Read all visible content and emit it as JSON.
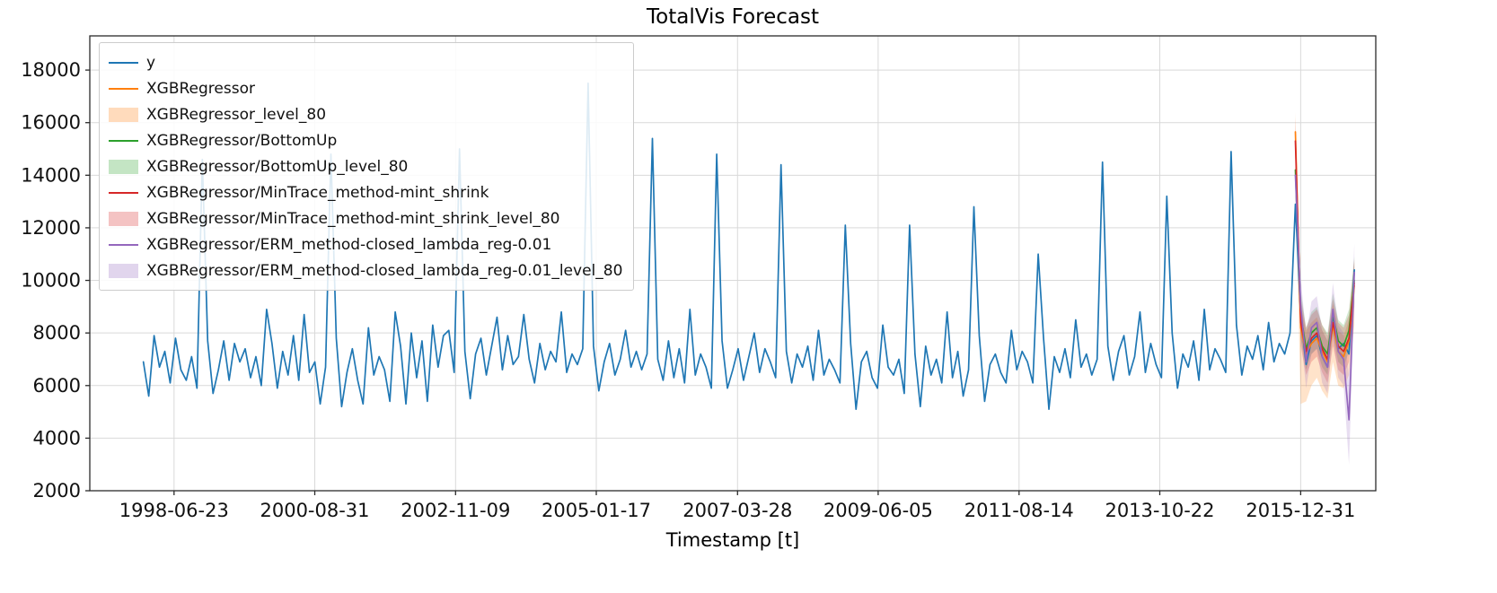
{
  "chart_data": {
    "type": "line",
    "title": "TotalVis Forecast",
    "xlabel": "Timestamp [t]",
    "ylabel": "",
    "grid": true,
    "legend_position": "upper left",
    "x_unit": "monthly, month index 0 = 1998-01",
    "xlim_months": [
      -10,
      230
    ],
    "ylim": [
      2000,
      19300
    ],
    "y_ticks": [
      2000,
      4000,
      6000,
      8000,
      10000,
      12000,
      14000,
      16000,
      18000
    ],
    "x_tick_labels": [
      "1998-06-23",
      "2000-08-31",
      "2002-11-09",
      "2005-01-17",
      "2007-03-28",
      "2009-06-05",
      "2011-08-14",
      "2013-10-22",
      "2015-12-31"
    ],
    "series": [
      {
        "name": "y",
        "color": "#1f77b4",
        "start_index": 0,
        "values": [
          6900,
          5600,
          7900,
          6700,
          7300,
          6100,
          7800,
          6600,
          6200,
          7100,
          5900,
          14600,
          7700,
          5700,
          6600,
          7700,
          6200,
          7600,
          6900,
          7400,
          6300,
          7100,
          6000,
          8900,
          7600,
          5900,
          7300,
          6400,
          7900,
          6200,
          8700,
          6500,
          6900,
          5300,
          6700,
          14800,
          7800,
          5200,
          6500,
          7400,
          6200,
          5300,
          8200,
          6400,
          7100,
          6600,
          5400,
          8800,
          7500,
          5300,
          8000,
          6300,
          7700,
          5400,
          8300,
          6700,
          7900,
          8100,
          6500,
          15000,
          7300,
          5500,
          7200,
          7800,
          6400,
          7500,
          8600,
          6600,
          7900,
          6800,
          7100,
          8700,
          7000,
          6100,
          7600,
          6600,
          7300,
          6900,
          8800,
          6500,
          7200,
          6800,
          7400,
          17500,
          7500,
          5800,
          6900,
          7600,
          6400,
          7000,
          8100,
          6700,
          7300,
          6600,
          7200,
          15400,
          7000,
          6200,
          7700,
          6300,
          7400,
          6100,
          8900,
          6400,
          7200,
          6700,
          5900,
          14800,
          7700,
          5900,
          6600,
          7400,
          6200,
          7100,
          8000,
          6500,
          7400,
          6900,
          6300,
          14400,
          7300,
          6100,
          7200,
          6700,
          7500,
          6200,
          8100,
          6400,
          7000,
          6600,
          6100,
          12100,
          7600,
          5100,
          6900,
          7300,
          6300,
          5900,
          8300,
          6700,
          6400,
          7000,
          5700,
          12100,
          7200,
          5200,
          7500,
          6400,
          7000,
          6100,
          8800,
          6300,
          7300,
          5600,
          6600,
          12800,
          7900,
          5400,
          6800,
          7200,
          6500,
          6100,
          8100,
          6600,
          7300,
          6900,
          6100,
          11000,
          7800,
          5100,
          7100,
          6500,
          7400,
          6300,
          8500,
          6700,
          7200,
          6400,
          7000,
          14500,
          7500,
          6200,
          7300,
          7900,
          6400,
          7100,
          8800,
          6500,
          7600,
          6800,
          6300,
          13200,
          8000,
          5900,
          7200,
          6700,
          7700,
          6200,
          8900,
          6600,
          7400,
          7000,
          6500,
          14900,
          8300,
          6400,
          7500,
          7000,
          7900,
          6600,
          8400,
          6900,
          7600,
          7200,
          8000,
          12900,
          8600,
          6800,
          7700,
          7900,
          7100,
          6700,
          8700,
          7400,
          7600,
          7200,
          10400
        ]
      },
      {
        "name": "XGBRegressor",
        "color": "#ff7f0e",
        "start_index": 215,
        "values": [
          15650,
          8200,
          7200,
          7600,
          7800,
          7300,
          6900,
          8300,
          7300,
          7100,
          7700,
          9800
        ]
      },
      {
        "name": "XGBRegressor/BottomUp",
        "color": "#2ca02c",
        "start_index": 215,
        "values": [
          14200,
          8700,
          7400,
          8000,
          8200,
          7500,
          7200,
          8700,
          7700,
          7500,
          8100,
          10000
        ]
      },
      {
        "name": "XGBRegressor/MinTrace_method-mint_shrink",
        "color": "#d62728",
        "start_index": 215,
        "values": [
          15300,
          8400,
          7300,
          7800,
          8000,
          7400,
          7000,
          8400,
          7500,
          7300,
          7800,
          9900
        ]
      },
      {
        "name": "XGBRegressor/ERM_method-closed_lambda_reg-0.01",
        "color": "#9467bd",
        "start_index": 215,
        "values": [
          14000,
          9000,
          6900,
          8200,
          8400,
          7100,
          6700,
          8900,
          7300,
          7000,
          4700,
          10300
        ]
      }
    ],
    "bands": [
      {
        "name": "XGBRegressor_level_80",
        "color": "#ff7f0e",
        "alpha": 0.22,
        "start_index": 215,
        "lo": [
          13800,
          5300,
          5400,
          6000,
          6300,
          5800,
          5500,
          6900,
          6000,
          5900,
          6400,
          8300
        ],
        "hi": [
          16400,
          9000,
          8100,
          8400,
          8600,
          8100,
          7700,
          9100,
          8100,
          7900,
          8500,
          10700
        ]
      },
      {
        "name": "XGBRegressor/BottomUp_level_80",
        "color": "#2ca02c",
        "alpha": 0.22,
        "start_index": 215,
        "lo": [
          13400,
          7800,
          6600,
          7200,
          7400,
          6700,
          6400,
          7900,
          6900,
          6700,
          7300,
          9100
        ],
        "hi": [
          15000,
          9600,
          8200,
          8800,
          9000,
          8300,
          8000,
          9500,
          8500,
          8300,
          8900,
          10900
        ]
      },
      {
        "name": "XGBRegressor/MinTrace_method-mint_shrink_level_80",
        "color": "#d62728",
        "alpha": 0.22,
        "start_index": 215,
        "lo": [
          14400,
          7500,
          6400,
          6900,
          7100,
          6500,
          6100,
          7500,
          6600,
          6400,
          6900,
          9000
        ],
        "hi": [
          16200,
          9300,
          8200,
          8700,
          8900,
          8300,
          7900,
          9300,
          8400,
          8200,
          8700,
          10800
        ]
      },
      {
        "name": "XGBRegressor/ERM_method-closed_lambda_reg-0.01_level_80",
        "color": "#9467bd",
        "alpha": 0.22,
        "start_index": 215,
        "lo": [
          13100,
          7900,
          5900,
          7200,
          7400,
          6100,
          5700,
          7900,
          6300,
          6000,
          3000,
          9200
        ],
        "hi": [
          14900,
          10100,
          7900,
          9200,
          9400,
          8100,
          7700,
          9900,
          8300,
          8000,
          6400,
          11400
        ]
      }
    ],
    "legend": [
      {
        "label": "y",
        "type": "line",
        "color": "#1f77b4"
      },
      {
        "label": "XGBRegressor",
        "type": "line",
        "color": "#ff7f0e"
      },
      {
        "label": "XGBRegressor_level_80",
        "type": "patch",
        "color": "#ff7f0e"
      },
      {
        "label": "XGBRegressor/BottomUp",
        "type": "line",
        "color": "#2ca02c"
      },
      {
        "label": "XGBRegressor/BottomUp_level_80",
        "type": "patch",
        "color": "#2ca02c"
      },
      {
        "label": "XGBRegressor/MinTrace_method-mint_shrink",
        "type": "line",
        "color": "#d62728"
      },
      {
        "label": "XGBRegressor/MinTrace_method-mint_shrink_level_80",
        "type": "patch",
        "color": "#d62728"
      },
      {
        "label": "XGBRegressor/ERM_method-closed_lambda_reg-0.01",
        "type": "line",
        "color": "#9467bd"
      },
      {
        "label": "XGBRegressor/ERM_method-closed_lambda_reg-0.01_level_80",
        "type": "patch",
        "color": "#9467bd"
      }
    ]
  }
}
